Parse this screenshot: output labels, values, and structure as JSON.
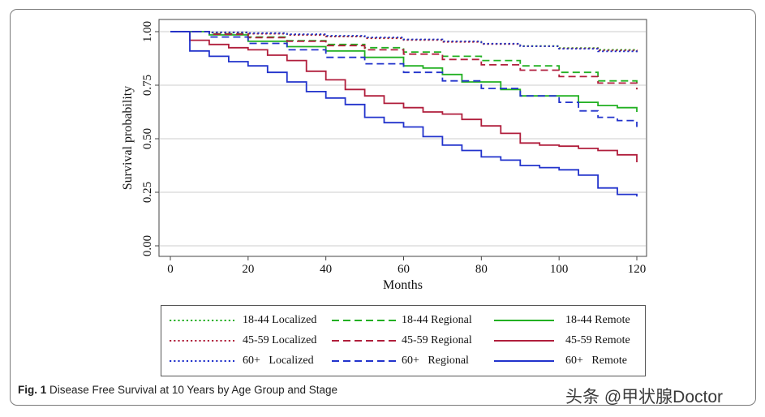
{
  "chart_data": {
    "type": "line",
    "title": "",
    "xlabel": "Months",
    "ylabel": "Survival probability",
    "xlim": [
      0,
      120
    ],
    "ylim": [
      0,
      1
    ],
    "xticks": [
      0,
      20,
      40,
      60,
      80,
      100,
      120
    ],
    "xtick_labels": [
      "0",
      "20",
      "40",
      "60",
      "80",
      "100",
      "120"
    ],
    "yticks": [
      0,
      0.25,
      0.5,
      0.75,
      1
    ],
    "ytick_labels": [
      "0.00",
      "0.25",
      "0.50",
      "0.75",
      "1.00"
    ],
    "grid": "horizontal",
    "step": true,
    "colors": {
      "green": "#22b022",
      "crimson": "#b01e3c",
      "blue": "#2233cc",
      "grid": "#cccccc",
      "axis": "#444444"
    },
    "series": [
      {
        "name": "18-44 Localized",
        "color": "#22b022",
        "dash": "dotted",
        "x": [
          0,
          10,
          20,
          30,
          40,
          50,
          60,
          70,
          80,
          90,
          100,
          110,
          120
        ],
        "y": [
          1.0,
          0.995,
          0.99,
          0.985,
          0.978,
          0.97,
          0.962,
          0.953,
          0.943,
          0.933,
          0.924,
          0.915,
          0.905
        ]
      },
      {
        "name": "18-44 Regional",
        "color": "#22b022",
        "dash": "dashed",
        "x": [
          0,
          10,
          20,
          30,
          40,
          50,
          60,
          70,
          80,
          90,
          100,
          110,
          120
        ],
        "y": [
          1.0,
          0.99,
          0.975,
          0.958,
          0.94,
          0.925,
          0.905,
          0.885,
          0.865,
          0.84,
          0.81,
          0.77,
          0.735
        ]
      },
      {
        "name": "18-44 Remote",
        "color": "#22b022",
        "dash": "solid",
        "x": [
          0,
          10,
          20,
          30,
          40,
          50,
          60,
          65,
          70,
          75,
          80,
          85,
          90,
          100,
          105,
          110,
          115,
          120
        ],
        "y": [
          1.0,
          0.985,
          0.955,
          0.93,
          0.91,
          0.88,
          0.84,
          0.83,
          0.8,
          0.765,
          0.765,
          0.73,
          0.7,
          0.7,
          0.67,
          0.655,
          0.645,
          0.625
        ]
      },
      {
        "name": "45-59 Localized",
        "color": "#b01e3c",
        "dash": "dotted",
        "x": [
          0,
          10,
          20,
          30,
          40,
          50,
          60,
          70,
          80,
          90,
          100,
          110,
          120
        ],
        "y": [
          1.0,
          0.996,
          0.99,
          0.984,
          0.977,
          0.969,
          0.961,
          0.952,
          0.942,
          0.932,
          0.922,
          0.912,
          0.902
        ]
      },
      {
        "name": "45-59 Regional",
        "color": "#b01e3c",
        "dash": "dashed",
        "x": [
          0,
          10,
          20,
          30,
          40,
          50,
          60,
          70,
          80,
          90,
          100,
          110,
          120
        ],
        "y": [
          1.0,
          0.988,
          0.972,
          0.955,
          0.935,
          0.915,
          0.895,
          0.87,
          0.845,
          0.82,
          0.79,
          0.76,
          0.73
        ]
      },
      {
        "name": "45-59 Remote",
        "color": "#b01e3c",
        "dash": "solid",
        "x": [
          0,
          5,
          10,
          15,
          20,
          25,
          30,
          35,
          40,
          45,
          50,
          55,
          60,
          65,
          70,
          75,
          80,
          85,
          90,
          95,
          100,
          105,
          110,
          115,
          120
        ],
        "y": [
          1.0,
          0.96,
          0.94,
          0.925,
          0.915,
          0.89,
          0.865,
          0.815,
          0.775,
          0.73,
          0.7,
          0.665,
          0.645,
          0.625,
          0.615,
          0.59,
          0.56,
          0.525,
          0.48,
          0.47,
          0.465,
          0.455,
          0.445,
          0.425,
          0.39
        ]
      },
      {
        "name": "60+ Localized",
        "color": "#2233cc",
        "dash": "dotted",
        "x": [
          0,
          10,
          20,
          30,
          40,
          50,
          60,
          70,
          80,
          90,
          100,
          110,
          120
        ],
        "y": [
          1.0,
          0.997,
          0.993,
          0.988,
          0.981,
          0.973,
          0.964,
          0.955,
          0.944,
          0.932,
          0.92,
          0.908,
          0.895
        ]
      },
      {
        "name": "60+ Regional",
        "color": "#2233cc",
        "dash": "dashed",
        "x": [
          0,
          10,
          20,
          30,
          40,
          50,
          60,
          70,
          80,
          90,
          100,
          105,
          110,
          115,
          120
        ],
        "y": [
          1.0,
          0.975,
          0.945,
          0.915,
          0.88,
          0.85,
          0.81,
          0.77,
          0.735,
          0.7,
          0.67,
          0.63,
          0.6,
          0.585,
          0.555
        ]
      },
      {
        "name": "60+ Remote",
        "color": "#2233cc",
        "dash": "solid",
        "x": [
          0,
          5,
          10,
          15,
          20,
          25,
          30,
          35,
          40,
          45,
          50,
          55,
          60,
          65,
          70,
          75,
          80,
          85,
          90,
          95,
          100,
          105,
          110,
          115,
          120
        ],
        "y": [
          1.0,
          0.91,
          0.885,
          0.86,
          0.84,
          0.81,
          0.765,
          0.72,
          0.69,
          0.66,
          0.6,
          0.575,
          0.555,
          0.51,
          0.47,
          0.445,
          0.415,
          0.4,
          0.375,
          0.365,
          0.355,
          0.33,
          0.27,
          0.24,
          0.23
        ]
      }
    ]
  },
  "legend": {
    "items": [
      {
        "label": "18-44 Localized",
        "color": "#22b022",
        "dash": "dotted"
      },
      {
        "label": "18-44 Regional",
        "color": "#22b022",
        "dash": "dashed"
      },
      {
        "label": "18-44 Remote",
        "color": "#22b022",
        "dash": "solid"
      },
      {
        "label": "45-59 Localized",
        "color": "#b01e3c",
        "dash": "dotted"
      },
      {
        "label": "45-59 Regional",
        "color": "#b01e3c",
        "dash": "dashed"
      },
      {
        "label": "45-59 Remote",
        "color": "#b01e3c",
        "dash": "solid"
      },
      {
        "label": "60+   Localized",
        "color": "#2233cc",
        "dash": "dotted"
      },
      {
        "label": "60+   Regional",
        "color": "#2233cc",
        "dash": "dashed"
      },
      {
        "label": "60+   Remote",
        "color": "#2233cc",
        "dash": "solid"
      }
    ]
  },
  "caption": {
    "label": "Fig. 1",
    "text": " Disease Free Survival at 10 Years by Age Group and Stage"
  },
  "watermark": {
    "text": "头条 @甲状腺Doctor"
  }
}
